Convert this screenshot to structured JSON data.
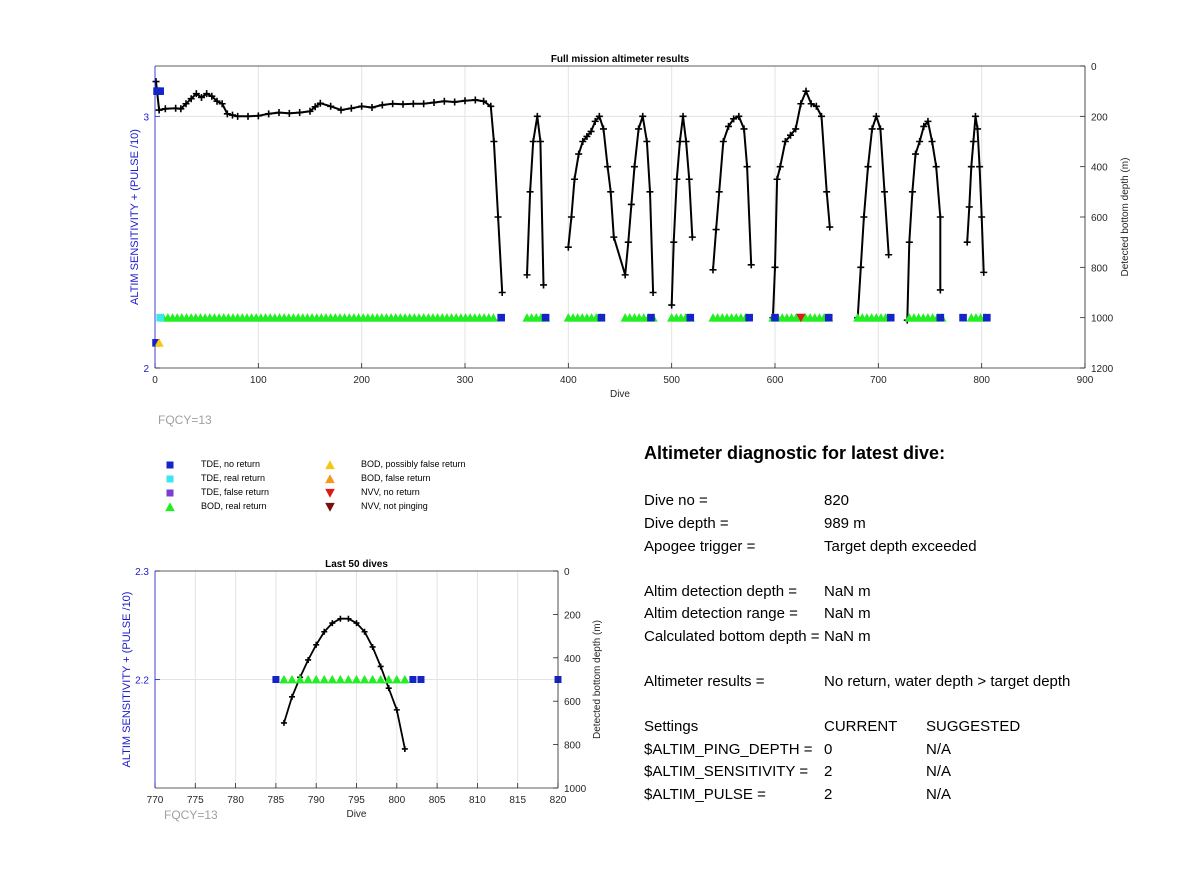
{
  "colors": {
    "tde_no_return": "#1424c8",
    "tde_real_return": "#3de6ee",
    "tde_false_return": "#7b3fd0",
    "bod_real_return": "#22ee22",
    "bod_possibly_false": "#f6c814",
    "bod_false_return": "#f09a1e",
    "nvv_no_return": "#dd1a1a",
    "nvv_not_pinging": "#7a0f0f",
    "left_axis": "#1a1acc",
    "freq_text": "#a0a0a0"
  },
  "fqcy_label_top": "FQCY=13",
  "fqcy_label_bottom": "FQCY=13",
  "chart_data": [
    {
      "type": "scatter",
      "title": "Full mission altimeter results",
      "xlabel": "Dive",
      "ylabel_left": "ALTIM SENSITIVITY + (PULSE /10)",
      "ylabel_right": "Detected bottom depth (m)",
      "xlim": [
        0,
        900
      ],
      "ylim_left": [
        2,
        3.2
      ],
      "ylim_right": [
        1200,
        0
      ],
      "xticks": [
        "0",
        "100",
        "200",
        "300",
        "400",
        "500",
        "600",
        "700",
        "800",
        "900"
      ],
      "yticks_left": [
        "2",
        "3"
      ],
      "yticks_right": [
        "0",
        "200",
        "400",
        "600",
        "800",
        "1000",
        "1200"
      ],
      "grid": true,
      "series": [
        {
          "name": "Detected bottom depth",
          "axis": "right",
          "points": [
            [
              1,
              62
            ],
            [
              4,
              175
            ],
            [
              10,
              170
            ],
            [
              20,
              168
            ],
            [
              25,
              170
            ],
            [
              30,
              150
            ],
            [
              35,
              130
            ],
            [
              40,
              110
            ],
            [
              45,
              125
            ],
            [
              50,
              110
            ],
            [
              55,
              120
            ],
            [
              60,
              140
            ],
            [
              65,
              150
            ],
            [
              70,
              190
            ],
            [
              75,
              195
            ],
            [
              80,
              200
            ],
            [
              90,
              200
            ],
            [
              100,
              198
            ],
            [
              110,
              190
            ],
            [
              120,
              185
            ],
            [
              130,
              188
            ],
            [
              140,
              185
            ],
            [
              150,
              180
            ],
            [
              155,
              162
            ],
            [
              160,
              148
            ],
            [
              170,
              160
            ],
            [
              180,
              175
            ],
            [
              190,
              168
            ],
            [
              200,
              160
            ],
            [
              210,
              165
            ],
            [
              220,
              155
            ],
            [
              230,
              150
            ],
            [
              240,
              152
            ],
            [
              250,
              150
            ],
            [
              260,
              150
            ],
            [
              270,
              145
            ],
            [
              280,
              140
            ],
            [
              290,
              143
            ],
            [
              300,
              138
            ],
            [
              310,
              135
            ],
            [
              318,
              140
            ],
            [
              325,
              160
            ],
            [
              328,
              300
            ],
            [
              332,
              600
            ],
            [
              336,
              900
            ],
            [
              360,
              830
            ],
            [
              363,
              500
            ],
            [
              366,
              300
            ],
            [
              370,
              200
            ],
            [
              373,
              300
            ],
            [
              376,
              870
            ],
            [
              400,
              720
            ],
            [
              403,
              600
            ],
            [
              406,
              450
            ],
            [
              410,
              350
            ],
            [
              414,
              300
            ],
            [
              418,
              280
            ],
            [
              422,
              260
            ],
            [
              426,
              220
            ],
            [
              430,
              200
            ],
            [
              434,
              250
            ],
            [
              438,
              400
            ],
            [
              441,
              500
            ],
            [
              444,
              680
            ],
            [
              455,
              830
            ],
            [
              458,
              700
            ],
            [
              461,
              550
            ],
            [
              464,
              400
            ],
            [
              468,
              250
            ],
            [
              472,
              200
            ],
            [
              476,
              300
            ],
            [
              479,
              500
            ],
            [
              482,
              900
            ],
            [
              500,
              950
            ],
            [
              502,
              700
            ],
            [
              505,
              450
            ],
            [
              508,
              300
            ],
            [
              511,
              200
            ],
            [
              514,
              300
            ],
            [
              517,
              450
            ],
            [
              520,
              680
            ],
            [
              540,
              810
            ],
            [
              543,
              650
            ],
            [
              546,
              500
            ],
            [
              550,
              300
            ],
            [
              555,
              240
            ],
            [
              560,
              210
            ],
            [
              565,
              200
            ],
            [
              570,
              250
            ],
            [
              573,
              400
            ],
            [
              577,
              790
            ],
            [
              598,
              1000
            ],
            [
              600,
              800
            ],
            [
              602,
              450
            ],
            [
              605,
              400
            ],
            [
              610,
              300
            ],
            [
              615,
              275
            ],
            [
              620,
              250
            ],
            [
              625,
              150
            ],
            [
              630,
              100
            ],
            [
              635,
              150
            ],
            [
              640,
              160
            ],
            [
              645,
              200
            ],
            [
              650,
              500
            ],
            [
              653,
              640
            ],
            [
              680,
              1000
            ],
            [
              683,
              800
            ],
            [
              686,
              600
            ],
            [
              690,
              400
            ],
            [
              694,
              250
            ],
            [
              698,
              200
            ],
            [
              702,
              250
            ],
            [
              706,
              500
            ],
            [
              710,
              750
            ],
            [
              728,
              1010
            ],
            [
              730,
              700
            ],
            [
              733,
              500
            ],
            [
              736,
              350
            ],
            [
              740,
              300
            ],
            [
              744,
              240
            ],
            [
              748,
              220
            ],
            [
              752,
              300
            ],
            [
              756,
              400
            ],
            [
              760,
              600
            ],
            [
              760,
              890
            ],
            [
              786,
              700
            ],
            [
              788,
              560
            ],
            [
              790,
              400
            ],
            [
              792,
              300
            ],
            [
              794,
              200
            ],
            [
              796,
              250
            ],
            [
              798,
              400
            ],
            [
              800,
              600
            ],
            [
              802,
              820
            ]
          ]
        },
        {
          "name": "BOD, real return",
          "axis": "left",
          "y": 2.2,
          "segments": [
            [
              8,
              330
            ],
            [
              360,
              378
            ],
            [
              400,
              432
            ],
            [
              455,
              482
            ],
            [
              500,
              518
            ],
            [
              540,
              575
            ],
            [
              598,
              652
            ],
            [
              680,
              710
            ],
            [
              730,
              765
            ],
            [
              790,
              805
            ]
          ]
        },
        {
          "name": "TDE, no return",
          "axis": "left",
          "points": [
            [
              2,
              3.1
            ],
            [
              5,
              3.1
            ],
            [
              1,
              2.1
            ],
            [
              335,
              2.2
            ],
            [
              378,
              2.2
            ],
            [
              432,
              2.2
            ],
            [
              480,
              2.2
            ],
            [
              518,
              2.2
            ],
            [
              575,
              2.2
            ],
            [
              600,
              2.2
            ],
            [
              652,
              2.2
            ],
            [
              712,
              2.2
            ],
            [
              760,
              2.2
            ],
            [
              782,
              2.2
            ],
            [
              805,
              2.2
            ]
          ]
        },
        {
          "name": "TDE, real return",
          "axis": "left",
          "points": [
            [
              5,
              2.2
            ]
          ]
        },
        {
          "name": "BOD, possibly false return",
          "axis": "left",
          "points": [
            [
              4,
              2.1
            ]
          ]
        },
        {
          "name": "NVV, no return",
          "axis": "left",
          "points": [
            [
              625,
              2.2
            ]
          ]
        }
      ]
    },
    {
      "type": "scatter",
      "title": "Last 50 dives",
      "xlabel": "Dive",
      "ylabel_left": "ALTIM SENSITIVITY + (PULSE /10)",
      "ylabel_right": "Detected bottom depth (m)",
      "xlim": [
        770,
        820
      ],
      "ylim_left": [
        2.1,
        2.3
      ],
      "ylim_right": [
        1000,
        0
      ],
      "xticks": [
        "770",
        "775",
        "780",
        "785",
        "790",
        "795",
        "800",
        "805",
        "810",
        "815",
        "820"
      ],
      "yticks_left": [
        "2.2",
        "2.3"
      ],
      "yticks_right": [
        "0",
        "200",
        "400",
        "600",
        "800",
        "1000"
      ],
      "grid": true,
      "series": [
        {
          "name": "Detected bottom depth",
          "axis": "right",
          "points": [
            [
              786,
              700
            ],
            [
              787,
              580
            ],
            [
              788,
              490
            ],
            [
              789,
              410
            ],
            [
              790,
              340
            ],
            [
              791,
              280
            ],
            [
              792,
              240
            ],
            [
              793,
              220
            ],
            [
              794,
              220
            ],
            [
              795,
              240
            ],
            [
              796,
              280
            ],
            [
              797,
              350
            ],
            [
              798,
              440
            ],
            [
              799,
              540
            ],
            [
              800,
              640
            ],
            [
              801,
              820
            ]
          ]
        },
        {
          "name": "BOD, real return",
          "axis": "left",
          "points": [
            [
              786,
              2.2
            ],
            [
              787,
              2.2
            ],
            [
              788,
              2.2
            ],
            [
              789,
              2.2
            ],
            [
              790,
              2.2
            ],
            [
              791,
              2.2
            ],
            [
              792,
              2.2
            ],
            [
              793,
              2.2
            ],
            [
              794,
              2.2
            ],
            [
              795,
              2.2
            ],
            [
              796,
              2.2
            ],
            [
              797,
              2.2
            ],
            [
              798,
              2.2
            ],
            [
              799,
              2.2
            ],
            [
              800,
              2.2
            ],
            [
              801,
              2.2
            ]
          ]
        },
        {
          "name": "TDE, no return",
          "axis": "left",
          "points": [
            [
              785,
              2.2
            ],
            [
              802,
              2.2
            ],
            [
              803,
              2.2
            ],
            [
              820,
              2.2
            ]
          ]
        }
      ]
    }
  ],
  "legend": [
    {
      "label": "TDE, no return",
      "marker": "square",
      "color_key": "tde_no_return"
    },
    {
      "label": "TDE, real return",
      "marker": "square",
      "color_key": "tde_real_return"
    },
    {
      "label": "TDE, false return",
      "marker": "square",
      "color_key": "tde_false_return"
    },
    {
      "label": "BOD, real return",
      "marker": "triangle-up",
      "color_key": "bod_real_return"
    },
    {
      "label": "BOD, possibly false return",
      "marker": "triangle-up",
      "color_key": "bod_possibly_false"
    },
    {
      "label": "BOD, false return",
      "marker": "triangle-up",
      "color_key": "bod_false_return"
    },
    {
      "label": "NVV, no return",
      "marker": "triangle-down",
      "color_key": "nvv_no_return"
    },
    {
      "label": "NVV, not pinging",
      "marker": "triangle-down",
      "color_key": "nvv_not_pinging"
    }
  ],
  "diagnostic": {
    "title": "Altimeter diagnostic for latest dive:",
    "dive_no_label": "Dive no =",
    "dive_no": "820",
    "dive_depth_label": "Dive depth =",
    "dive_depth": "989 m",
    "apogee_label": "Apogee trigger =",
    "apogee": "Target depth exceeded",
    "detect_depth_label": "Altim detection depth =",
    "detect_depth": "NaN m",
    "detect_range_label": "Altim detection range =",
    "detect_range": "NaN m",
    "calc_bottom_label": "Calculated bottom depth =",
    "calc_bottom": "NaN m",
    "results_label": "Altimeter results =",
    "results": "No return, water depth > target depth",
    "settings_label": "Settings",
    "current_label": "CURRENT",
    "suggested_label": "SUGGESTED",
    "ping_depth_label": "$ALTIM_PING_DEPTH =",
    "ping_depth_current": "0",
    "ping_depth_suggested": "N/A",
    "sensitivity_label": "$ALTIM_SENSITIVITY =",
    "sensitivity_current": "2",
    "sensitivity_suggested": "N/A",
    "pulse_label": "$ALTIM_PULSE =",
    "pulse_current": "2",
    "pulse_suggested": "N/A"
  }
}
